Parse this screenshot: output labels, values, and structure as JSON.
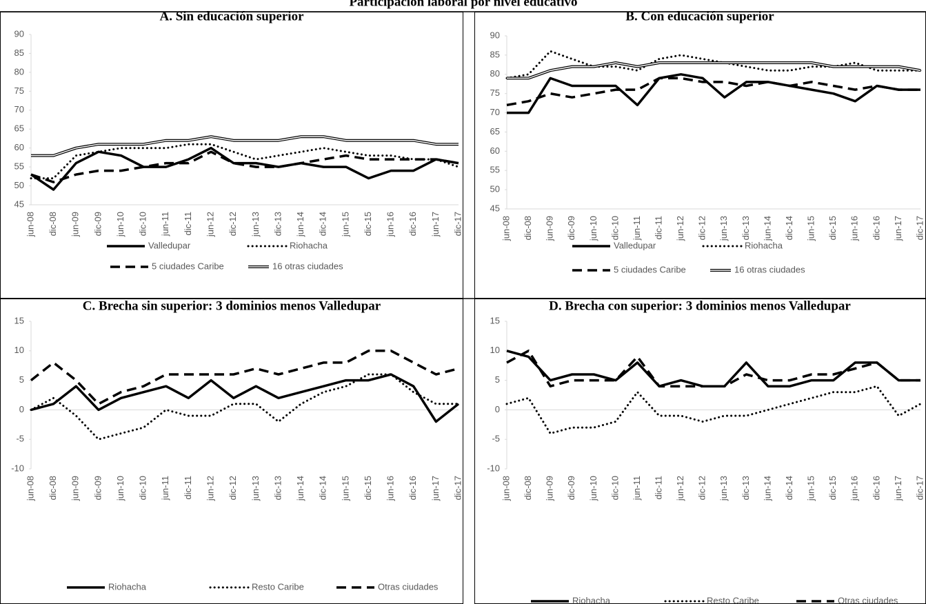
{
  "title": "Participación laboral por nivel educativo",
  "chart_data": [
    {
      "type": "line",
      "title": "A. Sin educación superior",
      "categories": [
        "jun-08",
        "dic-08",
        "jun-09",
        "dic-09",
        "jun-10",
        "dic-10",
        "jun-11",
        "dic-11",
        "jun-12",
        "dic-12",
        "jun-13",
        "dic-13",
        "jun-14",
        "dic-14",
        "jun-15",
        "dic-15",
        "jun-16",
        "dic-16",
        "jun-17",
        "dic-17"
      ],
      "ylim": [
        45,
        90
      ],
      "yticks": [
        45,
        50,
        55,
        60,
        65,
        70,
        75,
        80,
        85,
        90
      ],
      "series": [
        {
          "name": "Valledupar",
          "style": "solid",
          "color": "#000000",
          "values": [
            53,
            49,
            56,
            59,
            58,
            55,
            55,
            57,
            60,
            56,
            56,
            55,
            56,
            55,
            55,
            52,
            54,
            54,
            57,
            56
          ]
        },
        {
          "name": "Riohacha",
          "style": "dotted",
          "color": "#000000",
          "values": [
            52,
            52,
            58,
            59,
            60,
            60,
            60,
            61,
            61,
            59,
            57,
            58,
            59,
            60,
            59,
            58,
            58,
            57,
            57,
            55
          ]
        },
        {
          "name": "5 ciudades Caribe",
          "style": "dashed",
          "color": "#000000",
          "values": [
            53,
            51,
            53,
            54,
            54,
            55,
            56,
            56,
            59,
            56,
            55,
            55,
            56,
            57,
            58,
            57,
            57,
            57,
            57,
            56
          ]
        },
        {
          "name": "16 otras ciudades",
          "style": "double",
          "color": "#000000",
          "values": [
            58,
            58,
            60,
            61,
            61,
            61,
            62,
            62,
            63,
            62,
            62,
            62,
            63,
            63,
            62,
            62,
            62,
            62,
            61,
            61
          ]
        }
      ]
    },
    {
      "type": "line",
      "title": "B. Con educación superior",
      "categories": [
        "jun-08",
        "dic-08",
        "jun-09",
        "dic-09",
        "jun-10",
        "dic-10",
        "jun-11",
        "dic-11",
        "jun-12",
        "dic-12",
        "jun-13",
        "dic-13",
        "jun-14",
        "dic-14",
        "jun-15",
        "dic-15",
        "jun-16",
        "dic-16",
        "jun-17",
        "dic-17"
      ],
      "ylim": [
        45,
        90
      ],
      "yticks": [
        45,
        50,
        55,
        60,
        65,
        70,
        75,
        80,
        85,
        90
      ],
      "series": [
        {
          "name": "Valledupar",
          "style": "solid",
          "color": "#000000",
          "values": [
            70,
            70,
            79,
            77,
            77,
            77,
            72,
            79,
            80,
            79,
            74,
            78,
            78,
            77,
            76,
            75,
            73,
            77,
            76,
            76
          ]
        },
        {
          "name": "Riohacha",
          "style": "dotted",
          "color": "#000000",
          "values": [
            79,
            80,
            86,
            84,
            82,
            82,
            81,
            84,
            85,
            84,
            83,
            82,
            81,
            81,
            82,
            82,
            83,
            81,
            81,
            81
          ]
        },
        {
          "name": "5 ciudades Caribe",
          "style": "dashed",
          "color": "#000000",
          "values": [
            72,
            73,
            75,
            74,
            75,
            76,
            76,
            79,
            79,
            78,
            78,
            77,
            78,
            77,
            78,
            77,
            76,
            77,
            76,
            76
          ]
        },
        {
          "name": "16 otras ciudades",
          "style": "double",
          "color": "#000000",
          "values": [
            79,
            79,
            81,
            82,
            82,
            83,
            82,
            83,
            83,
            83,
            83,
            83,
            83,
            83,
            83,
            82,
            82,
            82,
            82,
            81
          ]
        }
      ]
    },
    {
      "type": "line",
      "title": "C. Brecha sin superior: 3 dominios menos Valledupar",
      "categories": [
        "jun-08",
        "dic-08",
        "jun-09",
        "dic-09",
        "jun-10",
        "dic-10",
        "jun-11",
        "dic-11",
        "jun-12",
        "dic-12",
        "jun-13",
        "dic-13",
        "jun-14",
        "dic-14",
        "jun-15",
        "dic-15",
        "jun-16",
        "dic-16",
        "jun-17",
        "dic-17"
      ],
      "ylim": [
        -10,
        15
      ],
      "yticks": [
        -10,
        -5,
        0,
        5,
        10,
        15
      ],
      "series": [
        {
          "name": "Riohacha",
          "style": "solid",
          "color": "#000000",
          "values": [
            0,
            1,
            4,
            0,
            2,
            3,
            4,
            2,
            5,
            2,
            4,
            2,
            3,
            4,
            5,
            5,
            6,
            4,
            -2,
            1
          ]
        },
        {
          "name": "Resto Caribe",
          "style": "dotted",
          "color": "#000000",
          "values": [
            0,
            2,
            -1,
            -5,
            -4,
            -3,
            0,
            -1,
            -1,
            1,
            1,
            -2,
            1,
            3,
            4,
            6,
            6,
            3,
            1,
            1
          ]
        },
        {
          "name": "Otras ciudades",
          "style": "dashed",
          "color": "#000000",
          "values": [
            5,
            8,
            5,
            1,
            3,
            4,
            6,
            6,
            6,
            6,
            7,
            6,
            7,
            8,
            8,
            10,
            10,
            8,
            6,
            7
          ]
        }
      ]
    },
    {
      "type": "line",
      "title": "D. Brecha con superior: 3 dominios menos Valledupar",
      "categories": [
        "jun-08",
        "dic-08",
        "jun-09",
        "dic-09",
        "jun-10",
        "dic-10",
        "jun-11",
        "dic-11",
        "jun-12",
        "dic-12",
        "jun-13",
        "dic-13",
        "jun-14",
        "dic-14",
        "jun-15",
        "dic-15",
        "jun-16",
        "dic-16",
        "jun-17",
        "dic-17"
      ],
      "ylim": [
        -10,
        15
      ],
      "yticks": [
        -10,
        -5,
        0,
        5,
        10,
        15
      ],
      "series": [
        {
          "name": "Riohacha",
          "style": "solid",
          "color": "#000000",
          "values": [
            10,
            9,
            5,
            6,
            6,
            5,
            8,
            4,
            5,
            4,
            4,
            8,
            4,
            4,
            5,
            5,
            8,
            8,
            5,
            5
          ]
        },
        {
          "name": "Resto Caribe",
          "style": "dotted",
          "color": "#000000",
          "values": [
            1,
            2,
            -4,
            -3,
            -3,
            -2,
            3,
            -1,
            -1,
            -2,
            -1,
            -1,
            0,
            1,
            2,
            3,
            3,
            4,
            -1,
            1
          ]
        },
        {
          "name": "Otras ciudades",
          "style": "dashed",
          "color": "#000000",
          "values": [
            8,
            10,
            4,
            5,
            5,
            5,
            9,
            4,
            4,
            4,
            4,
            6,
            5,
            5,
            6,
            6,
            7,
            8,
            5,
            5
          ]
        }
      ]
    }
  ]
}
